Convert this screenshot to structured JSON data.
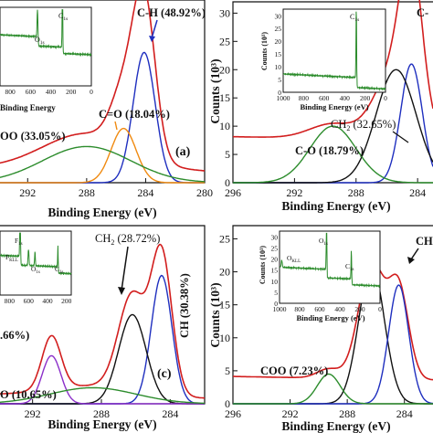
{
  "chart_data": [
    {
      "panel": "a",
      "type": "line",
      "title": "",
      "xlabel": "Binding Energy (eV)",
      "ylabel": "",
      "xlim": [
        294,
        280
      ],
      "ylim": [
        0,
        100
      ],
      "x_ticks": [
        "292",
        "288",
        "284",
        "280"
      ],
      "x_tick_values": [
        292,
        288,
        284,
        280
      ],
      "panel_label": "(a)",
      "series": [
        {
          "name": "",
          "color": "#d21e1e",
          "peaks": [
            {
              "center": 284.1,
              "height": 86,
              "width": 0.75
            },
            {
              "center": 285.5,
              "height": 30,
              "width": 0.85
            },
            {
              "center": 288.0,
              "height": 20,
              "width": 3.0
            }
          ],
          "baseline": 6
        },
        {
          "name": "C-H",
          "color": "#1f2fbf",
          "center": 284.1,
          "height": 72,
          "width": 0.75
        },
        {
          "name": "C=O",
          "color": "#f08a10",
          "center": 285.5,
          "height": 30,
          "width": 0.85
        },
        {
          "name": "OO",
          "color": "#2c8c2c",
          "center": 288.0,
          "height": 20,
          "width": 3.0
        }
      ],
      "annotations": [
        {
          "text": "C-H (48.92%)",
          "color": "#1f2fbf"
        },
        {
          "text": "C=O (18.04%)",
          "color": "#f08a10"
        },
        {
          "text": "OO (33.05%)",
          "color": "#2c8c2c"
        }
      ],
      "inset": {
        "xlabel": "Binding Energy",
        "x_ticks": [
          "800",
          "600",
          "400",
          "200",
          "0"
        ],
        "xlim": [
          900,
          0
        ],
        "color": "#2c8c2c",
        "peak_labels": [
          {
            "main": "O",
            "sub": "1s"
          },
          {
            "main": "C",
            "sub": "1s"
          }
        ]
      }
    },
    {
      "panel": "b",
      "type": "line",
      "title": "",
      "xlabel": "Binding Energy (eV)",
      "ylabel": "Counts (10³)",
      "xlim": [
        296,
        283
      ],
      "ylim": [
        0,
        32
      ],
      "x_ticks": [
        "296",
        "292",
        "288",
        "284"
      ],
      "x_tick_values": [
        296,
        292,
        288,
        284
      ],
      "y_ticks": [
        "0",
        "5",
        "10",
        "15",
        "20",
        "25",
        "30"
      ],
      "y_tick_values": [
        0,
        5,
        10,
        15,
        20,
        25,
        30
      ],
      "series": [
        {
          "name": "",
          "color": "#d21e1e",
          "peaks": [
            {
              "center": 284.4,
              "height": 24,
              "width": 0.7
            },
            {
              "center": 285.4,
              "height": 13,
              "width": 1.3
            },
            {
              "center": 289.5,
              "height": 2.6,
              "width": 1.5
            }
          ],
          "baseline": 7.5
        },
        {
          "name": "C-H",
          "color": "#1f2fbf",
          "center": 284.4,
          "height": 21,
          "width": 0.7
        },
        {
          "name": "CH₂",
          "color": "#111111",
          "center": 285.4,
          "height": 20,
          "width": 1.3
        },
        {
          "name": "C-O",
          "color": "#2c8c2c",
          "center": 289.5,
          "height": 10,
          "width": 1.5
        }
      ],
      "annotations": [
        {
          "text": "C-",
          "color": "#1f2fbf"
        },
        {
          "main": "CH",
          "sub": "2",
          "text": " (32.65%)",
          "color": "#111111"
        },
        {
          "text": "C-O (18.79%)",
          "color": "#2c8c2c"
        }
      ],
      "inset": {
        "xlabel": "Binding Energy (eV)",
        "ylabel": "Counts (10³)",
        "x_ticks": [
          "1000",
          "800",
          "600",
          "400",
          "200",
          "0"
        ],
        "y_ticks": [
          "0",
          "5",
          "10",
          "15",
          "20",
          "25",
          "30"
        ],
        "xlim": [
          1000,
          0
        ],
        "color": "#2c8c2c",
        "peak_labels": [
          {
            "main": "C",
            "sub": "1s"
          }
        ]
      }
    },
    {
      "panel": "c",
      "type": "line",
      "title": "",
      "xlabel": "Binding Energy (eV)",
      "ylabel": "",
      "xlim": [
        294,
        282
      ],
      "ylim": [
        0,
        100
      ],
      "x_ticks": [
        "292",
        "288",
        "284"
      ],
      "x_tick_values": [
        292,
        288,
        284
      ],
      "panel_label": "(c)",
      "series": [
        {
          "name": "",
          "color": "#d21e1e",
          "peaks": [
            {
              "center": 284.5,
              "height": 78,
              "width": 0.6
            },
            {
              "center": 286.2,
              "height": 54,
              "width": 0.8
            },
            {
              "center": 290.9,
              "height": 30,
              "width": 0.55
            },
            {
              "center": 288.5,
              "height": 6,
              "width": 2.5
            }
          ],
          "baseline": 3
        },
        {
          "name": "CH",
          "color": "#1f2fbf",
          "center": 284.5,
          "height": 72,
          "width": 0.6
        },
        {
          "name": "CH₂",
          "color": "#111111",
          "center": 286.2,
          "height": 50,
          "width": 0.8
        },
        {
          "name": "",
          "color": "#8b2fc9",
          "center": 290.9,
          "height": 27,
          "width": 0.55
        },
        {
          "name": "O",
          "color": "#2c8c2c",
          "center": 288.5,
          "height": 9,
          "width": 2.5
        }
      ],
      "annotations": [
        {
          "main": "CH",
          "sub": "2",
          "text": " (28.72%)",
          "color": "#111111"
        },
        {
          "text": "CH (30.38%)",
          "color": "#1f2fbf"
        },
        {
          "text": ".66%)",
          "color": "#8b2fc9"
        },
        {
          "text": "O (10.65%)",
          "color": "#2c8c2c"
        }
      ],
      "inset": {
        "x_ticks": [
          "800",
          "600",
          "400",
          "200"
        ],
        "xlim": [
          900,
          150
        ],
        "color": "#2c8c2c",
        "peak_labels": [
          {
            "main": "F",
            "sub": "1s"
          },
          {
            "main": "F",
            "sub": "KLL"
          },
          {
            "main": "O",
            "sub": "1s"
          },
          {
            "main": "C",
            "sub": "1s"
          }
        ]
      }
    },
    {
      "panel": "d",
      "type": "line",
      "title": "",
      "xlabel": "Binding Energy (eV)",
      "ylabel": "Counts (10³)",
      "xlim": [
        296,
        282
      ],
      "ylim": [
        0,
        27
      ],
      "x_ticks": [
        "296",
        "292",
        "288",
        "284"
      ],
      "x_tick_values": [
        296,
        292,
        288,
        284
      ],
      "y_ticks": [
        "0",
        "5",
        "10",
        "15",
        "20",
        "25"
      ],
      "y_tick_values": [
        0,
        5,
        10,
        15,
        20,
        25
      ],
      "series": [
        {
          "name": "",
          "color": "#d21e1e",
          "peaks": [
            {
              "center": 286.3,
              "height": 17.5,
              "width": 0.9
            },
            {
              "center": 284.4,
              "height": 13.5,
              "width": 0.7
            },
            {
              "center": 289.3,
              "height": 1.4,
              "width": 0.8
            }
          ],
          "baseline": 3.6
        },
        {
          "name": "CH",
          "color": "#111111",
          "center": 286.3,
          "height": 21,
          "width": 0.9
        },
        {
          "name": "",
          "color": "#1f2fbf",
          "center": 284.4,
          "height": 18,
          "width": 0.7
        },
        {
          "name": "COO",
          "color": "#2c8c2c",
          "center": 289.3,
          "height": 4.5,
          "width": 0.8
        }
      ],
      "annotations": [
        {
          "text": "CH",
          "color": "#111111"
        },
        {
          "text": "COO (7.23%)",
          "color": "#2c8c2c"
        }
      ],
      "inset": {
        "xlabel": "Binding Energy (eV)",
        "ylabel": "Counts (10³)",
        "x_ticks": [
          "1000",
          "800",
          "600",
          "400",
          "200",
          "0"
        ],
        "y_ticks": [
          "0",
          "5",
          "10",
          "15",
          "20",
          "25",
          "30"
        ],
        "xlim": [
          1000,
          0
        ],
        "color": "#2c8c2c",
        "peak_labels": [
          {
            "main": "O",
            "sub": "KLL"
          },
          {
            "main": "O",
            "sub": "1s"
          },
          {
            "main": "C",
            "sub": "1s"
          }
        ]
      }
    }
  ]
}
